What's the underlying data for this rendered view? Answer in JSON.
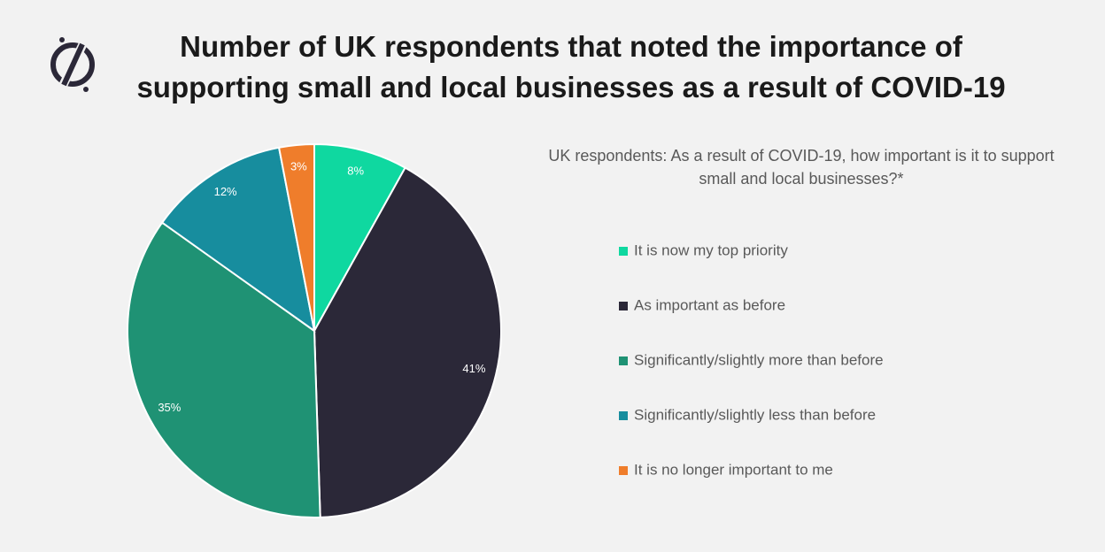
{
  "chart_data": {
    "type": "pie",
    "title": "Number of UK respondents that noted the importance of supporting small and local businesses as a result of COVID-19",
    "subtitle": "UK respondents: As a result of COVID-19, how important is it to support small and local businesses?*",
    "categories": [
      "It is now my top priority",
      "As important as before",
      "Significantly/slightly more than before",
      "Significantly/slightly less than before",
      "It is no longer important to me"
    ],
    "values": [
      8,
      41,
      35,
      12,
      3
    ],
    "value_labels": [
      "8%",
      "41%",
      "35%",
      "12%",
      "3%"
    ],
    "colors": [
      "#0fd8a0",
      "#2b2838",
      "#1f9274",
      "#178d9e",
      "#ef7d2b"
    ],
    "legend": "right"
  }
}
